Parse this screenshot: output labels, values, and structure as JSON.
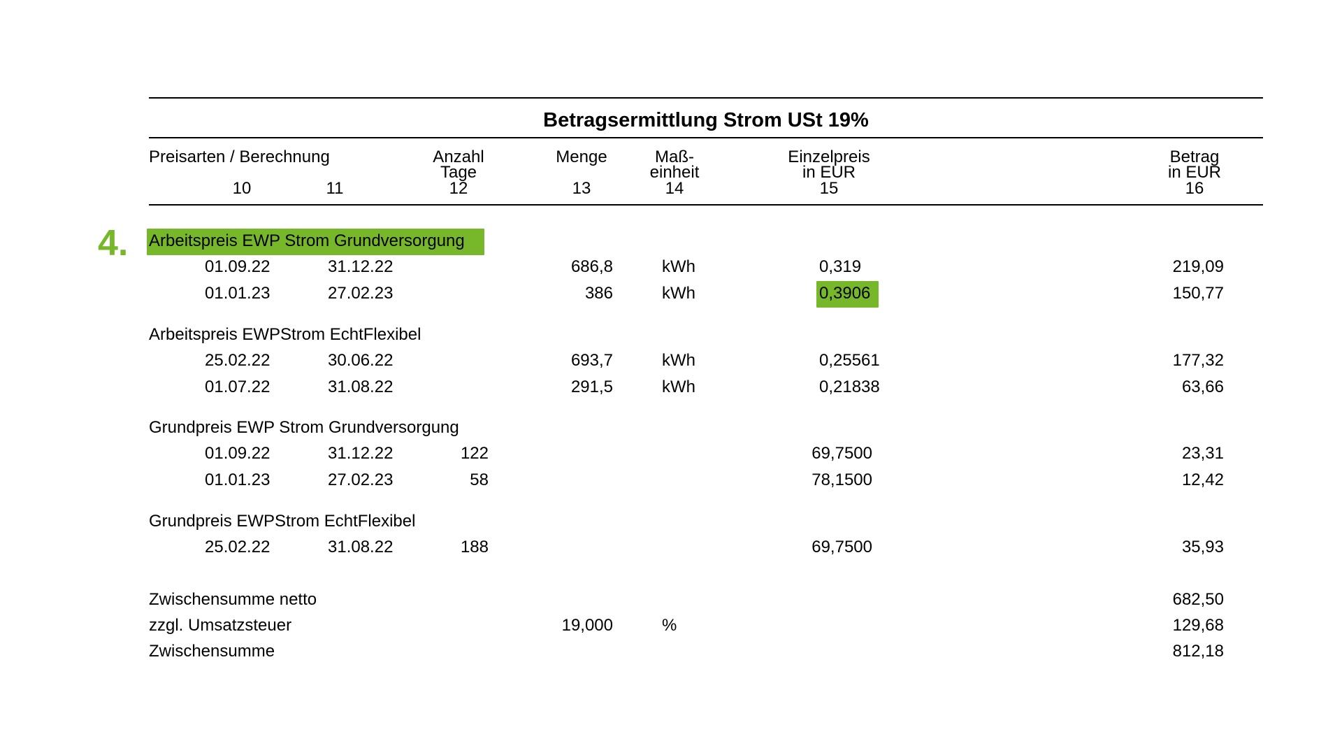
{
  "accent_color": "#77b82a",
  "section_marker": "4.",
  "title": "Betragsermittlung Strom USt 19%",
  "headers": {
    "preisarten": "Preisarten / Berechnung",
    "anzahl_tage_1": "Anzahl",
    "anzahl_tage_2": "Tage",
    "menge": "Menge",
    "masseinheit_1": "Maß-",
    "masseinheit_2": "einheit",
    "einzelpreis_1": "Einzelpreis",
    "einzelpreis_2": "in EUR",
    "betrag_1": "Betrag",
    "betrag_2": "in EUR",
    "col10": "10",
    "col11": "11",
    "col12": "12",
    "col13": "13",
    "col14": "14",
    "col15": "15",
    "col16": "16"
  },
  "groups": [
    {
      "label": "Arbeitspreis EWP Strom Grundversorgung",
      "highlighted": true,
      "rows": [
        {
          "von": "01.09.22",
          "bis": "31.12.22",
          "tage": "",
          "menge": "686,8",
          "einheit": "kWh",
          "einzelpreis": "0,319",
          "betrag": "219,09",
          "price_highlighted": false
        },
        {
          "von": "01.01.23",
          "bis": "27.02.23",
          "tage": "",
          "menge": "386",
          "einheit": "kWh",
          "einzelpreis": "0,3906",
          "betrag": "150,77",
          "price_highlighted": true
        }
      ]
    },
    {
      "label": "Arbeitspreis EWPStrom EchtFlexibel",
      "highlighted": false,
      "rows": [
        {
          "von": "25.02.22",
          "bis": "30.06.22",
          "tage": "",
          "menge": "693,7",
          "einheit": "kWh",
          "einzelpreis": "0,25561",
          "betrag": "177,32"
        },
        {
          "von": "01.07.22",
          "bis": "31.08.22",
          "tage": "",
          "menge": "291,5",
          "einheit": "kWh",
          "einzelpreis": "0,21838",
          "betrag": "63,66"
        }
      ]
    },
    {
      "label": "Grundpreis EWP Strom Grundversorgung",
      "highlighted": false,
      "rows": [
        {
          "von": "01.09.22",
          "bis": "31.12.22",
          "tage": "122",
          "menge": "",
          "einheit": "",
          "einzelpreis": "69,7500",
          "betrag": "23,31"
        },
        {
          "von": "01.01.23",
          "bis": "27.02.23",
          "tage": "58",
          "menge": "",
          "einheit": "",
          "einzelpreis": "78,1500",
          "betrag": "12,42"
        }
      ]
    },
    {
      "label": "Grundpreis EWPStrom EchtFlexibel",
      "highlighted": false,
      "rows": [
        {
          "von": "25.02.22",
          "bis": "31.08.22",
          "tage": "188",
          "menge": "",
          "einheit": "",
          "einzelpreis": "69,7500",
          "betrag": "35,93"
        }
      ]
    }
  ],
  "summary": [
    {
      "label": "Zwischensumme netto",
      "menge": "",
      "einheit": "",
      "betrag": "682,50"
    },
    {
      "label": "zzgl. Umsatzsteuer",
      "menge": "19,000",
      "einheit": "%",
      "betrag": "129,68"
    },
    {
      "label": "Zwischensumme",
      "menge": "",
      "einheit": "",
      "betrag": "812,18"
    }
  ]
}
